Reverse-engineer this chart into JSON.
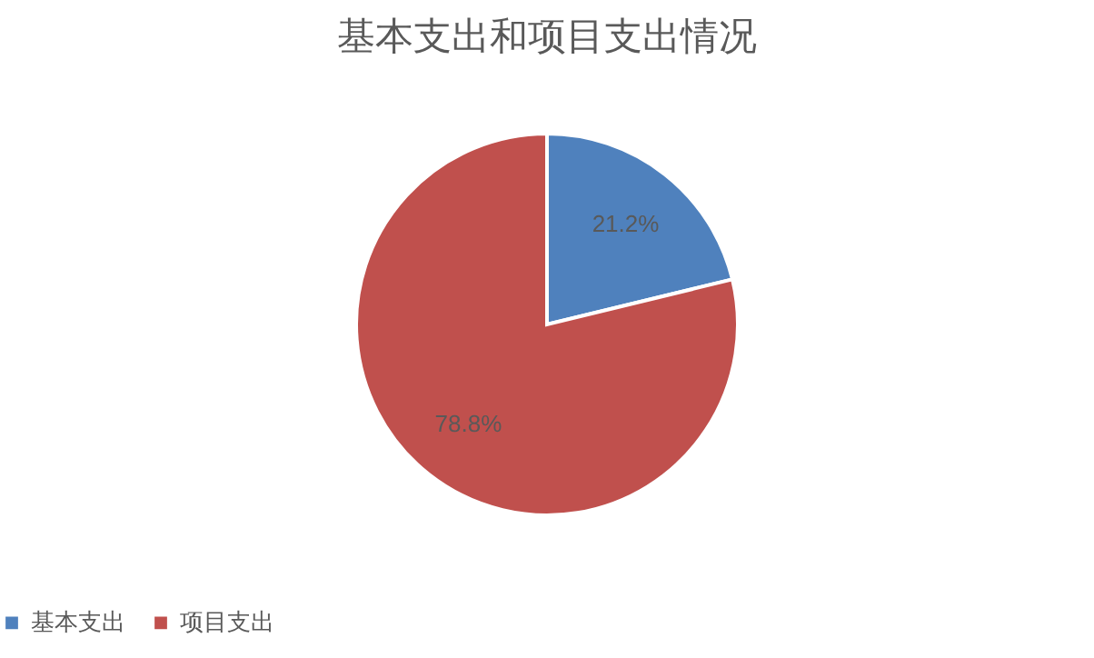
{
  "chart_data": {
    "type": "pie",
    "title": "基本支出和项目支出情况",
    "categories": [
      "基本支出",
      "项目支出"
    ],
    "values": [
      21.2,
      78.8
    ],
    "colors": [
      "#4f81bd",
      "#c0504d"
    ],
    "value_labels": [
      "21.2%",
      "78.8%"
    ],
    "legend": "bottom"
  }
}
